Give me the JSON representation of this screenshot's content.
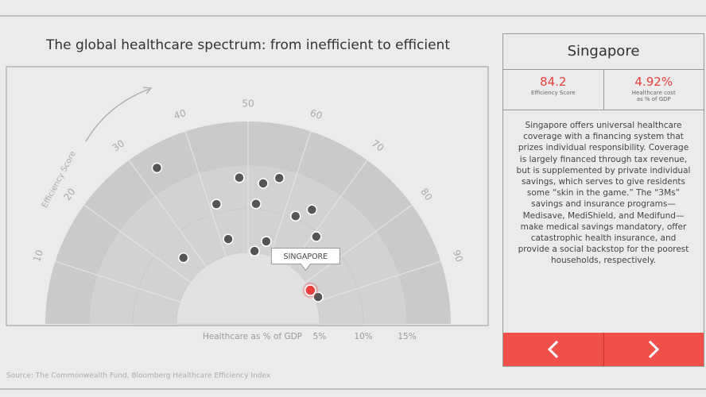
{
  "title": "The global healthcare spectrum: from inefficient to efficient",
  "source": "Source: The Commonwealth Fund, Bloomberg Healthcare Efficiency Index",
  "chart_data": {
    "type": "polar-scatter",
    "angle_label": "Efficiency Score",
    "radius_label": "Healthcare as % of GDP",
    "scores": [
      33.2,
      48.1,
      53.4,
      56.7,
      41.8,
      52.1,
      63.2,
      66.2,
      42.7,
      56.9,
      52.8,
      71.1,
      25.4,
      88.3
    ],
    "shares": [
      17.5,
      13.6,
      13.0,
      13.9,
      11.0,
      10.6,
      10.3,
      11.8,
      6.8,
      6.5,
      5.2,
      9.5,
      7.4,
      5.4
    ],
    "color": "#555555",
    "highlight": {
      "label": "SINGAPORE",
      "score": 84.2,
      "share": 4.92,
      "share_label": "4.92%",
      "color": "#e8403a"
    },
    "xlim": [
      0,
      100
    ],
    "xticks": [
      10,
      20,
      30,
      40,
      50,
      60,
      70,
      80,
      90
    ],
    "ylim": [
      0,
      20
    ],
    "yticks": [
      {
        "value": 5,
        "label": "5%"
      },
      {
        "value": 10,
        "label": "10%"
      },
      {
        "value": 15,
        "label": "15%"
      }
    ]
  },
  "panel": {
    "country": "Singapore",
    "score_caption": "Efficiency Score",
    "share_caption": "Healthcare cost as % of GDP",
    "text": "Singapore offers universal healthcare coverage with a financing system that prizes individual responsibility. Coverage is largely financed through tax revenue, but is supplemented by private individual savings, which serves to give residents some “skin in the game.” The “3Ms” savings and insurance programs—Medisave, MediShield, and Medifund—make medical savings mandatory, offer catastrophic health insurance, and provide a social backstop for the poorest households, respectively."
  }
}
